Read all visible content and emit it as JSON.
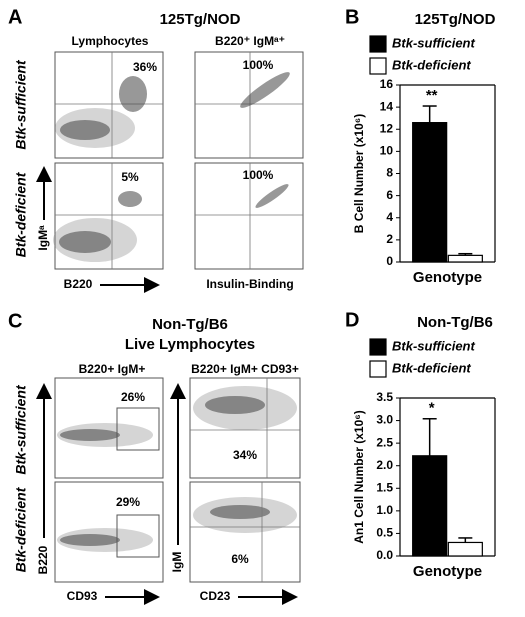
{
  "flow_a": {
    "panel_label": "A",
    "title": "125Tg/NOD",
    "columns": [
      "Lymphocytes",
      "B220⁺ IgMᵃ⁺"
    ],
    "rows": [
      "Btk-sufficient",
      "Btk-deficient"
    ],
    "percents": [
      "36%",
      "100%",
      "5%",
      "100%"
    ],
    "x_axes": [
      "B220",
      "Insulin-Binding"
    ],
    "y_axes": [
      "IgMᵃ"
    ]
  },
  "flow_c": {
    "panel_label": "C",
    "title": "Non-Tg/B6",
    "subtitle": "Live Lymphocytes",
    "columns": [
      "B220+ IgM+",
      "B220+ IgM+ CD93+"
    ],
    "rows": [
      "Btk-sufficient",
      "Btk-deficient"
    ],
    "percents": [
      "26%",
      "34%",
      "29%",
      "6%"
    ],
    "x_axes": [
      "CD93",
      "CD23"
    ],
    "y_axes": [
      "B220",
      "IgM"
    ]
  },
  "chart_data": [
    {
      "type": "bar",
      "panel_label": "B",
      "title": "125Tg/NOD",
      "categories": [
        null
      ],
      "series": [
        {
          "name": "Btk-sufficient",
          "color": "#000000",
          "values": [
            12.6
          ],
          "errors": [
            1.5
          ]
        },
        {
          "name": "Btk-deficient",
          "color": "#ffffff",
          "values": [
            0.6
          ],
          "errors": [
            0.15
          ]
        }
      ],
      "ylabel": "B Cell Number (x10⁶)",
      "xlabel": "Genotype",
      "annotation": "**",
      "ylim": [
        0,
        16
      ],
      "yticks": [
        0,
        2,
        4,
        6,
        8,
        10,
        12,
        14,
        16
      ]
    },
    {
      "type": "bar",
      "panel_label": "D",
      "title": "Non-Tg/B6",
      "categories": [
        null
      ],
      "series": [
        {
          "name": "Btk-sufficient",
          "color": "#000000",
          "values": [
            2.22
          ],
          "errors": [
            0.82
          ]
        },
        {
          "name": "Btk-deficient",
          "color": "#ffffff",
          "values": [
            0.3
          ],
          "errors": [
            0.1
          ]
        }
      ],
      "ylabel": "An1 Cell Number (x10⁶)",
      "xlabel": "Genotype",
      "annotation": "*",
      "ylim": [
        0,
        3.5
      ],
      "yticks": [
        {
          "value": 0,
          "label": "0.0"
        },
        0.5,
        {
          "value": 1,
          "label": "1.0"
        },
        1.5,
        {
          "value": 2,
          "label": "2.0"
        },
        2.5,
        {
          "value": 3,
          "label": "3.0"
        },
        3.5
      ]
    }
  ]
}
